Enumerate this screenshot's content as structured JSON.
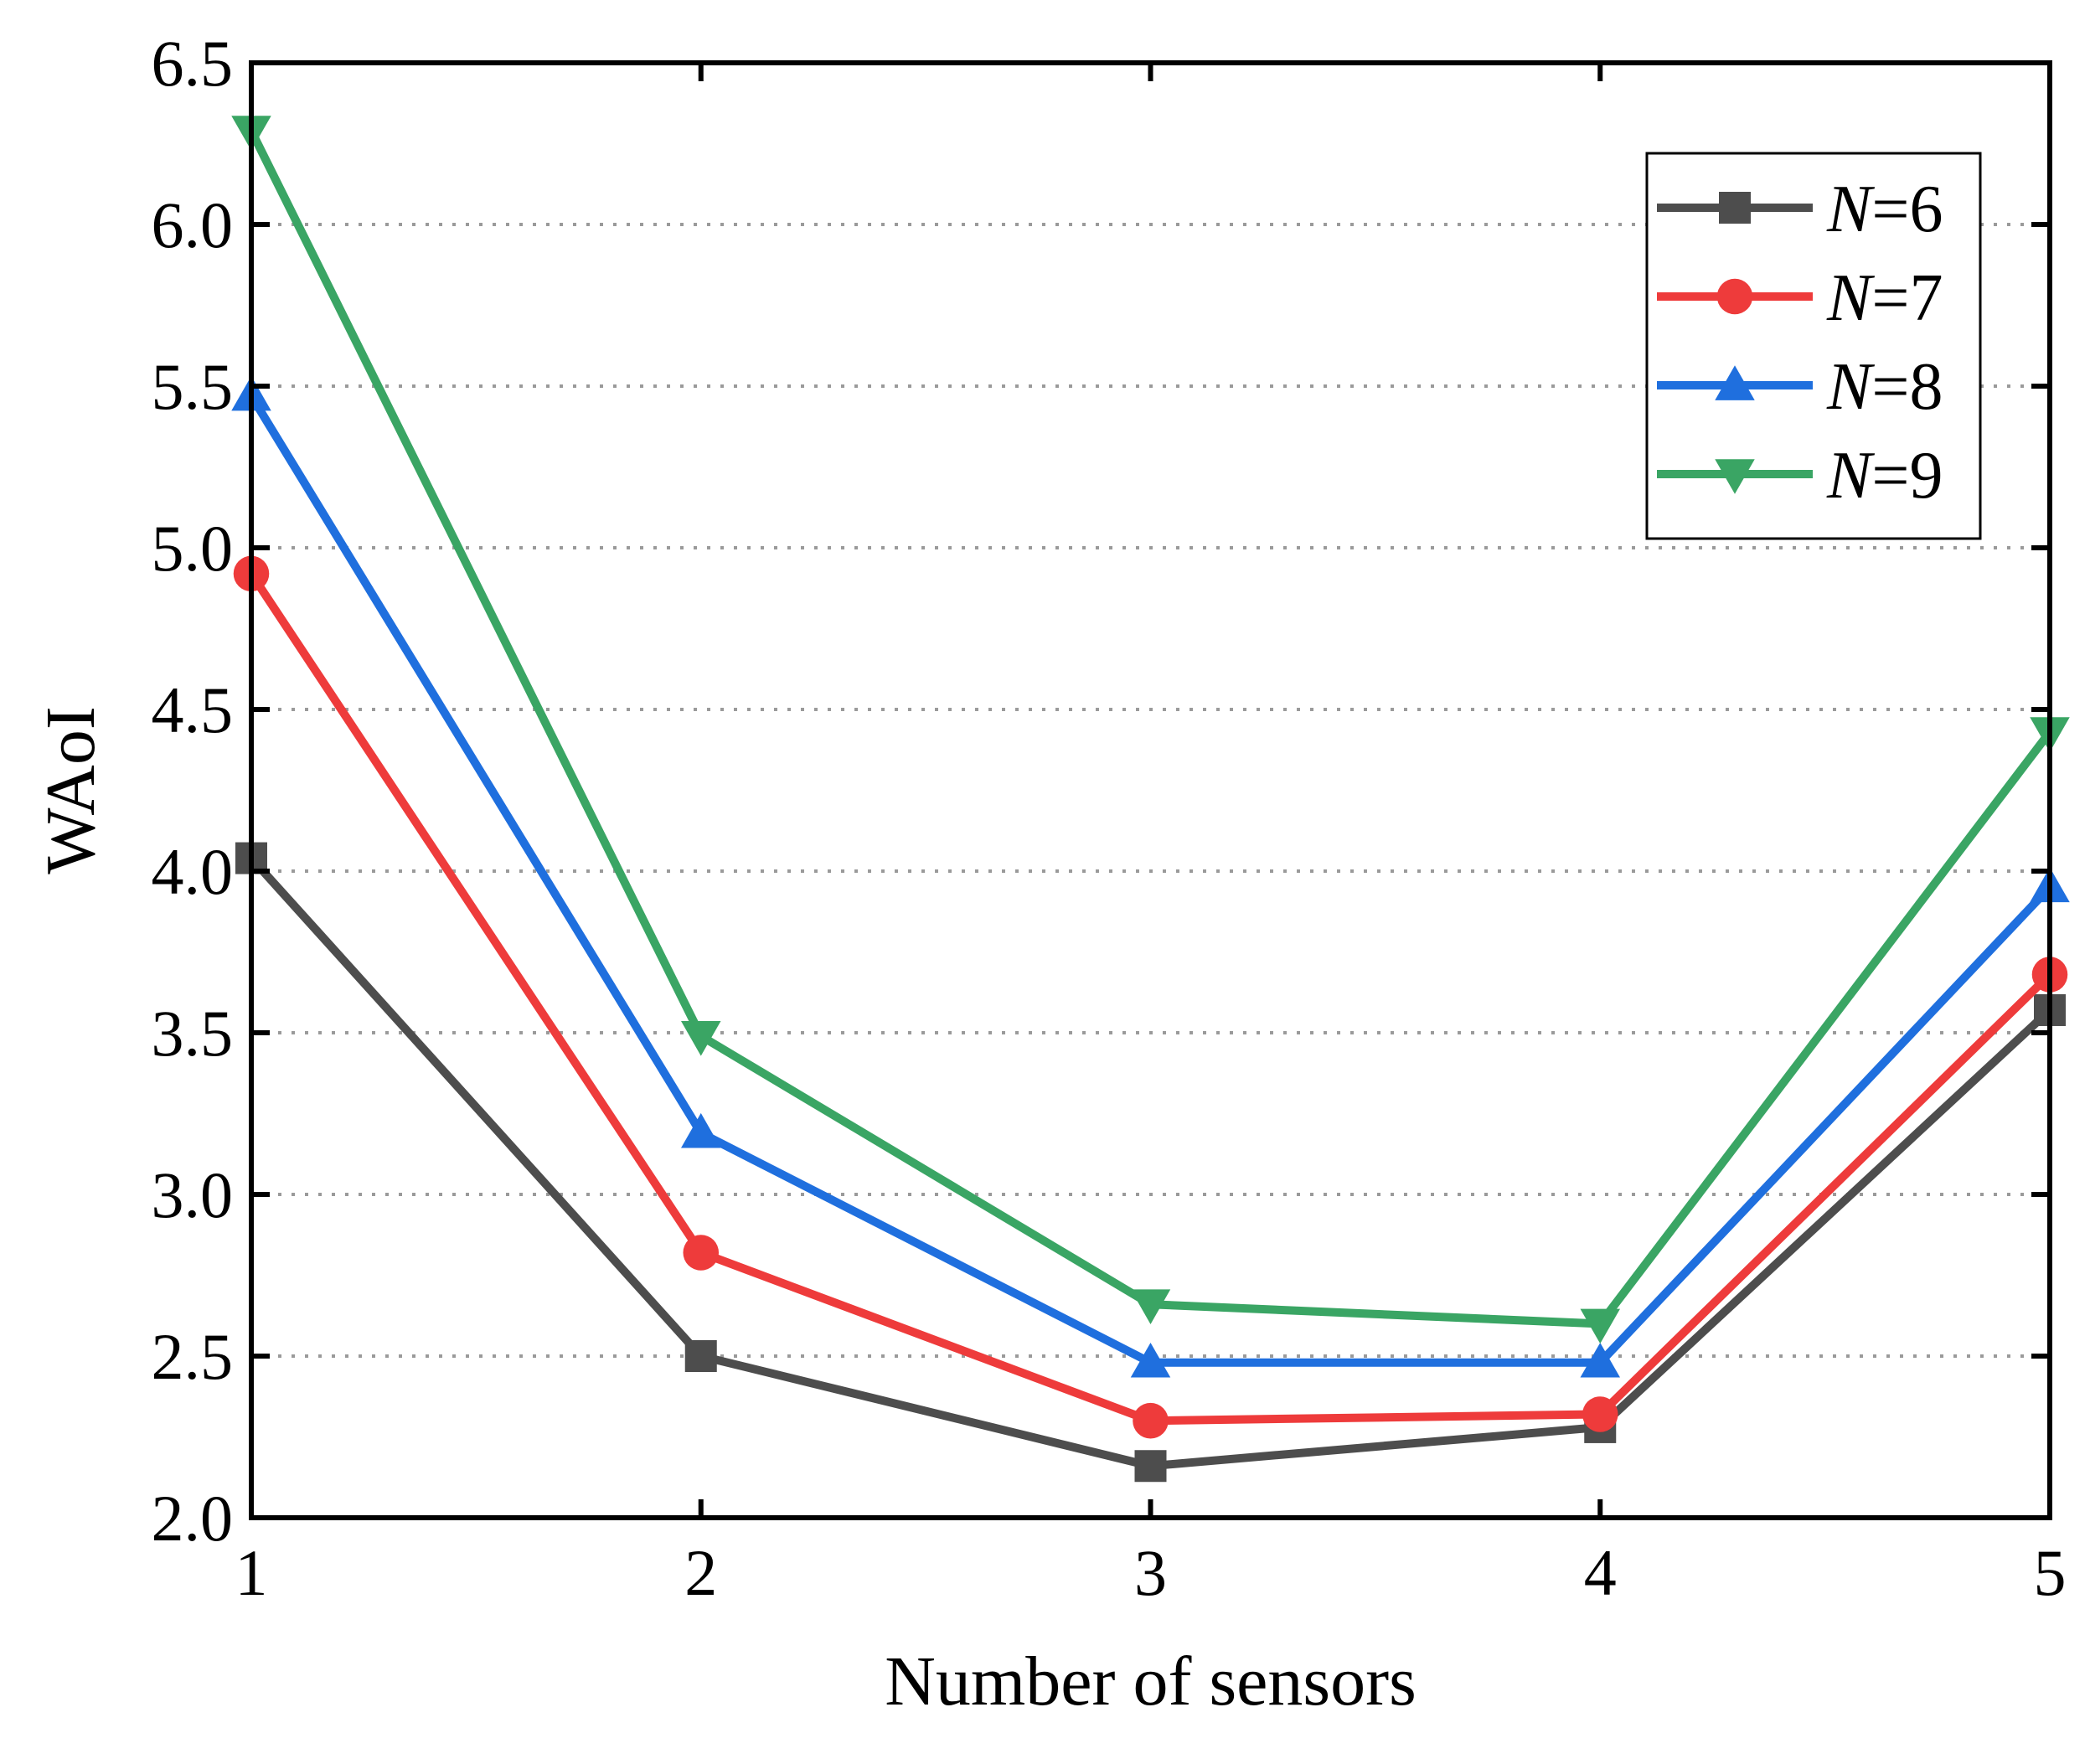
{
  "chart_data": {
    "type": "line",
    "title": "",
    "xlabel": "Number of sensors",
    "ylabel": "WAoI",
    "x": [
      1,
      2,
      3,
      4,
      5
    ],
    "x_tick_labels": [
      "1",
      "2",
      "3",
      "4",
      "5"
    ],
    "y_tick_labels": [
      "2.0",
      "2.5",
      "3.0",
      "3.5",
      "4.0",
      "4.5",
      "5.0",
      "5.5",
      "6.0",
      "6.5"
    ],
    "xlim": [
      1,
      5
    ],
    "ylim": [
      2.0,
      6.5
    ],
    "y_ticks": [
      2.0,
      2.5,
      3.0,
      3.5,
      4.0,
      4.5,
      5.0,
      5.5,
      6.0,
      6.5
    ],
    "grid": "horizontal dotted",
    "legend_position": "top-right",
    "series": [
      {
        "name": "N=6",
        "label_italic": "N",
        "label_rest": "=6",
        "color": "#4d4d4d",
        "marker": "square",
        "values": [
          4.04,
          2.5,
          2.16,
          2.28,
          3.57
        ]
      },
      {
        "name": "N=7",
        "label_italic": "N",
        "label_rest": "=7",
        "color": "#ee3b3b",
        "marker": "circle",
        "values": [
          4.92,
          2.82,
          2.3,
          2.32,
          3.68
        ]
      },
      {
        "name": "N=8",
        "label_italic": "N",
        "label_rest": "=8",
        "color": "#1f6fde",
        "marker": "triangle-up",
        "values": [
          5.47,
          3.19,
          2.48,
          2.48,
          3.95
        ]
      },
      {
        "name": "N=9",
        "label_italic": "N",
        "label_rest": "=9",
        "color": "#3aa564",
        "marker": "triangle-down",
        "values": [
          6.29,
          3.49,
          2.66,
          2.6,
          4.43
        ]
      }
    ]
  }
}
